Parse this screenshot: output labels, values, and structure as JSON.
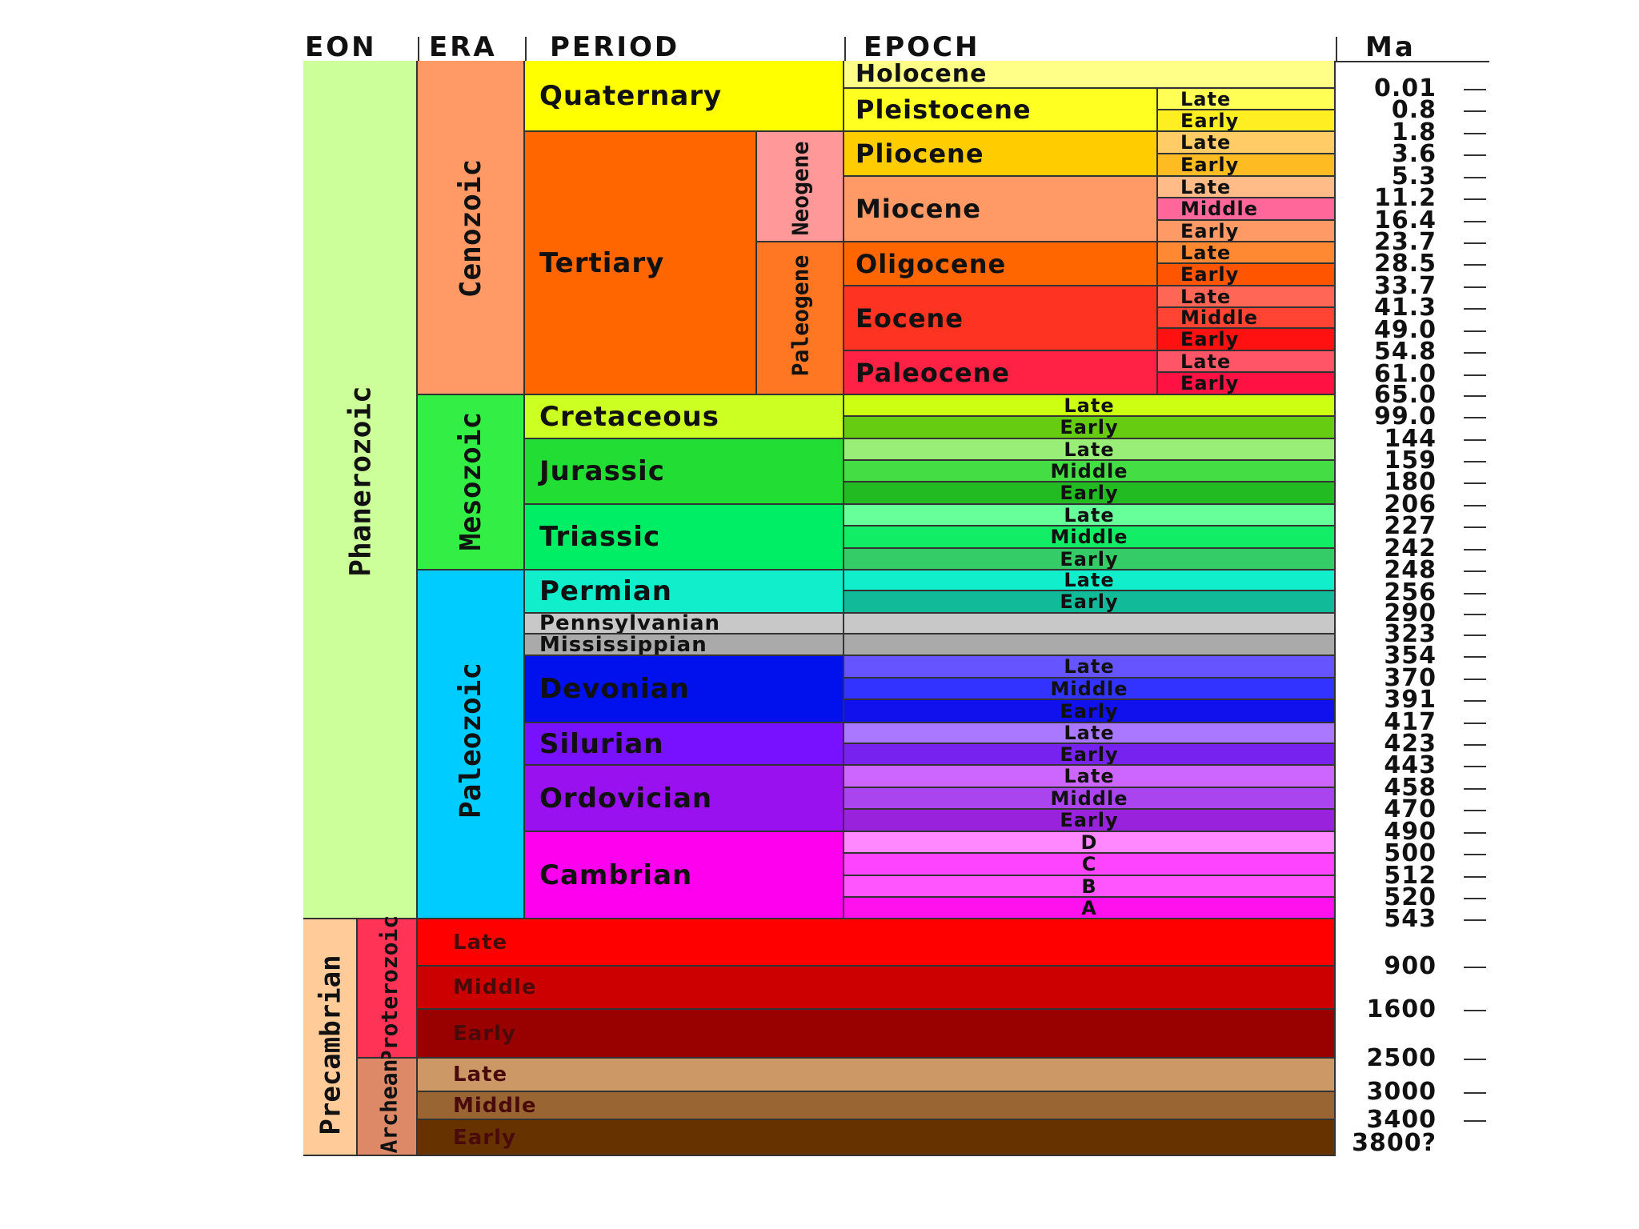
{
  "headers": {
    "eon": "EON",
    "era": "ERA",
    "period": "PERIOD",
    "epoch": "EPOCH",
    "ma": "Ma"
  },
  "eons": [
    {
      "name": "Phanerozoic",
      "color": "#ccff99"
    },
    {
      "name": "Precambrian",
      "color": "#ffcc99"
    }
  ],
  "eras": [
    {
      "name": "Cenozoic",
      "color": "#ff9966"
    },
    {
      "name": "Mesozoic",
      "color": "#33ee44"
    },
    {
      "name": "Paleozoic",
      "color": "#00ccff"
    },
    {
      "name": "Proterozoic",
      "color": "#ff3355"
    },
    {
      "name": "Archean",
      "color": "#dd8866"
    }
  ],
  "periods": [
    {
      "name": "Quaternary",
      "color": "#ffff00"
    },
    {
      "name": "Tertiary",
      "color": "#ff6600"
    },
    {
      "name": "Neogene",
      "color": "#ff9999"
    },
    {
      "name": "Paleogene",
      "color": "#ff7722"
    },
    {
      "name": "Cretaceous",
      "color": "#ccff22"
    },
    {
      "name": "Jurassic",
      "color": "#22dd33"
    },
    {
      "name": "Triassic",
      "color": "#00ee66"
    },
    {
      "name": "Permian",
      "color": "#11eecc"
    },
    {
      "name": "Pennsylvanian",
      "color": "#c8c8c8"
    },
    {
      "name": "Mississippian",
      "color": "#aaaaaa"
    },
    {
      "name": "Devonian",
      "color": "#0011ee"
    },
    {
      "name": "Silurian",
      "color": "#7711ff"
    },
    {
      "name": "Ordovician",
      "color": "#9911ee"
    },
    {
      "name": "Cambrian",
      "color": "#ff00ee"
    }
  ],
  "epochs": [
    {
      "name": "Holocene",
      "color": "#ffff88"
    },
    {
      "name": "Pleistocene",
      "color": "#ffff22"
    },
    {
      "name": "Pliocene",
      "color": "#ffcc00"
    },
    {
      "name": "Miocene",
      "color": "#ff9966"
    },
    {
      "name": "Oligocene",
      "color": "#ff6600"
    },
    {
      "name": "Eocene",
      "color": "#ff3322"
    },
    {
      "name": "Paleocene",
      "color": "#ff2244"
    }
  ],
  "subepochs": [
    {
      "name": "Late",
      "color": "#ffff55"
    },
    {
      "name": "Early",
      "color": "#ffee22"
    },
    {
      "name": "Late",
      "color": "#ffcc66"
    },
    {
      "name": "Early",
      "color": "#ffbb22"
    },
    {
      "name": "Late",
      "color": "#ffbb88"
    },
    {
      "name": "Middle",
      "color": "#ff6699"
    },
    {
      "name": "Early",
      "color": "#ff9966"
    },
    {
      "name": "Late",
      "color": "#ff8833"
    },
    {
      "name": "Early",
      "color": "#ff5500"
    },
    {
      "name": "Late",
      "color": "#ff6655"
    },
    {
      "name": "Middle",
      "color": "#ff4433"
    },
    {
      "name": "Early",
      "color": "#ff1111"
    },
    {
      "name": "Late",
      "color": "#ff5566"
    },
    {
      "name": "Early",
      "color": "#ff1144"
    }
  ],
  "stages": [
    {
      "name": "Late",
      "color": "#ccff11"
    },
    {
      "name": "Early",
      "color": "#66cc11"
    },
    {
      "name": "Late",
      "color": "#99ee77"
    },
    {
      "name": "Middle",
      "color": "#44dd44"
    },
    {
      "name": "Early",
      "color": "#22bb22"
    },
    {
      "name": "Late",
      "color": "#66ff99"
    },
    {
      "name": "Middle",
      "color": "#11ee66"
    },
    {
      "name": "Early",
      "color": "#33cc66"
    },
    {
      "name": "Late",
      "color": "#11eecc"
    },
    {
      "name": "Early",
      "color": "#11bb99"
    },
    {
      "name": "",
      "color": "#c8c8c8"
    },
    {
      "name": "",
      "color": "#aaaaaa"
    },
    {
      "name": "Late",
      "color": "#6655ff"
    },
    {
      "name": "Middle",
      "color": "#3333ff"
    },
    {
      "name": "Early",
      "color": "#1111ee"
    },
    {
      "name": "Late",
      "color": "#aa77ff"
    },
    {
      "name": "Early",
      "color": "#7722ee"
    },
    {
      "name": "Late",
      "color": "#cc66ff"
    },
    {
      "name": "Middle",
      "color": "#aa44ee"
    },
    {
      "name": "Early",
      "color": "#9922dd"
    },
    {
      "name": "D",
      "color": "#ff88ff"
    },
    {
      "name": "C",
      "color": "#ff44ff"
    },
    {
      "name": "B",
      "color": "#ff55ff"
    },
    {
      "name": "A",
      "color": "#ff11ee"
    }
  ],
  "precambrian": [
    {
      "name": "Late",
      "color": "#ff0000"
    },
    {
      "name": "Middle",
      "color": "#cc0000"
    },
    {
      "name": "Early",
      "color": "#990000"
    },
    {
      "name": "Late",
      "color": "#cc9966"
    },
    {
      "name": "Middle",
      "color": "#996633"
    },
    {
      "name": "Early",
      "color": "#663300"
    }
  ],
  "ma_labels": [
    "0.01",
    "0.8",
    "1.8",
    "3.6",
    "5.3",
    "11.2",
    "16.4",
    "23.7",
    "28.5",
    "33.7",
    "41.3",
    "49.0",
    "54.8",
    "61.0",
    "65.0",
    "99.0",
    "144",
    "159",
    "180",
    "206",
    "227",
    "242",
    "248",
    "256",
    "290",
    "323",
    "354",
    "370",
    "391",
    "417",
    "423",
    "443",
    "458",
    "470",
    "490",
    "500",
    "512",
    "520",
    "543",
    "900",
    "1600",
    "2500",
    "3000",
    "3400",
    "3800?"
  ]
}
